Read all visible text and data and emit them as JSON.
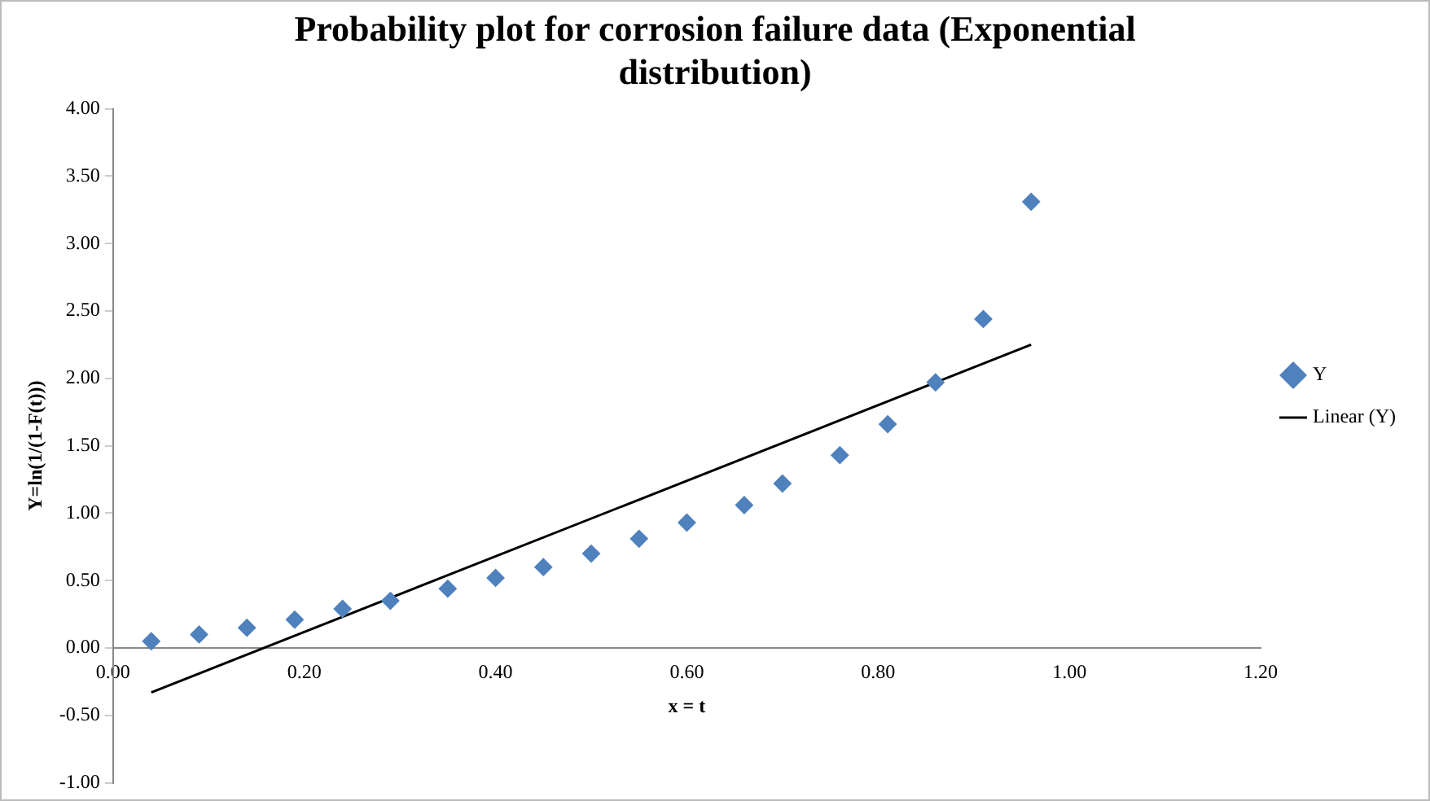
{
  "chart_data": {
    "type": "scatter",
    "title": "Probability plot for corrosion failure data (Exponential distribution)",
    "xlabel": "x = t",
    "ylabel": "Y=ln(1/(1-F(t)))",
    "xlim": [
      0,
      1.2
    ],
    "xticks": [
      {
        "value": 0,
        "label": "0.00"
      },
      {
        "value": 0.2,
        "label": "0.20"
      },
      {
        "value": 0.4,
        "label": "0.40"
      },
      {
        "value": 0.6,
        "label": "0.60"
      },
      {
        "value": 0.8,
        "label": "0.80"
      },
      {
        "value": 1,
        "label": "1.00"
      },
      {
        "value": 1.2,
        "label": "1.20"
      }
    ],
    "ylim": [
      -1,
      4
    ],
    "yticks": [
      {
        "value": -1,
        "label": "-1.00"
      },
      {
        "value": -0.5,
        "label": "-0.50"
      },
      {
        "value": 0,
        "label": "0.00"
      },
      {
        "value": 0.5,
        "label": "0.50"
      },
      {
        "value": 1,
        "label": "1.00"
      },
      {
        "value": 1.5,
        "label": "1.50"
      },
      {
        "value": 2,
        "label": "2.00"
      },
      {
        "value": 2.5,
        "label": "2.50"
      },
      {
        "value": 3,
        "label": "3.00"
      },
      {
        "value": 3.5,
        "label": "3.50"
      },
      {
        "value": 4,
        "label": "4.00"
      }
    ],
    "grid": false,
    "legend": "right",
    "series": [
      {
        "name": "Y",
        "marker": "diamond",
        "color": "#4f81bd",
        "x": [
          0.04,
          0.09,
          0.14,
          0.19,
          0.24,
          0.29,
          0.35,
          0.4,
          0.45,
          0.5,
          0.55,
          0.6,
          0.66,
          0.7,
          0.76,
          0.81,
          0.86,
          0.91,
          0.96
        ],
        "values": [
          0.05,
          0.1,
          0.15,
          0.21,
          0.29,
          0.35,
          0.44,
          0.52,
          0.6,
          0.7,
          0.81,
          0.93,
          1.06,
          1.22,
          1.43,
          1.66,
          1.97,
          2.44,
          3.31
        ]
      },
      {
        "name": "Linear (Y)",
        "type": "line",
        "marker": "none",
        "color": "#000000",
        "x": [
          0.04,
          0.96
        ],
        "values": [
          -0.33,
          2.25
        ]
      }
    ]
  }
}
